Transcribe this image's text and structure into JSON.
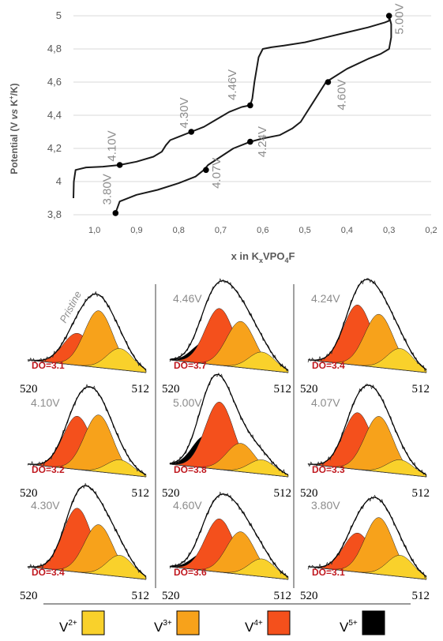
{
  "chart_data": [
    {
      "type": "line",
      "xlabel_main": "x in K",
      "xlabel_sub1": "x",
      "xlabel_mid": "VPO",
      "xlabel_sub2": "4",
      "xlabel_end": "F",
      "ylabel_pre": "Potential (V ",
      "ylabel_vs": "vs",
      "ylabel_post": " K",
      "ylabel_sup": "+",
      "ylabel_end": "/K)",
      "xlim": [
        1.05,
        0.2
      ],
      "ylim": [
        3.8,
        5.0
      ],
      "xticks": [
        1.0,
        0.9,
        0.8,
        0.7,
        0.6,
        0.5,
        0.4,
        0.3,
        0.2
      ],
      "xtick_labels": [
        "1,0",
        "0,9",
        "0,8",
        "0,7",
        "0,6",
        "0,5",
        "0,4",
        "0,3",
        "0,2"
      ],
      "yticks": [
        3.8,
        4.0,
        4.2,
        4.4,
        4.6,
        4.8,
        5.0
      ],
      "ytick_labels": [
        "3,8",
        "4",
        "4,2",
        "4,4",
        "4,6",
        "4,8",
        "5"
      ],
      "grid": "horizontal",
      "series": [
        {
          "x": [
            1.05,
            1.049,
            1.045,
            1.02,
            0.98,
            0.94,
            0.9,
            0.86,
            0.84,
            0.83,
            0.82,
            0.8,
            0.77,
            0.74,
            0.72,
            0.7,
            0.68,
            0.65,
            0.63,
            0.625,
            0.62,
            0.61,
            0.6,
            0.58,
            0.55,
            0.5,
            0.45,
            0.4,
            0.35,
            0.31,
            0.3,
            0.3,
            0.3
          ],
          "y": [
            3.9,
            4.0,
            4.07,
            4.085,
            4.09,
            4.1,
            4.12,
            4.15,
            4.18,
            4.22,
            4.25,
            4.27,
            4.3,
            4.33,
            4.36,
            4.39,
            4.42,
            4.45,
            4.46,
            4.5,
            4.6,
            4.75,
            4.8,
            4.81,
            4.82,
            4.84,
            4.87,
            4.9,
            4.93,
            4.96,
            4.97,
            4.98,
            5.0
          ]
        },
        {
          "x": [
            0.95,
            0.94,
            0.9,
            0.85,
            0.8,
            0.76,
            0.74,
            0.73,
            0.7,
            0.67,
            0.64,
            0.63,
            0.6,
            0.56,
            0.53,
            0.51,
            0.5,
            0.48,
            0.45,
            0.4,
            0.35,
            0.32,
            0.3,
            0.295,
            0.295,
            0.3
          ],
          "y": [
            3.81,
            3.88,
            3.92,
            3.95,
            3.99,
            4.03,
            4.07,
            4.1,
            4.15,
            4.2,
            4.23,
            4.24,
            4.26,
            4.28,
            4.32,
            4.36,
            4.4,
            4.48,
            4.6,
            4.68,
            4.74,
            4.77,
            4.8,
            4.87,
            4.95,
            5.0
          ]
        }
      ],
      "points": [
        {
          "x": 0.3,
          "y": 5.0,
          "label": "5.00V"
        },
        {
          "x": 0.63,
          "y": 4.46,
          "label": "4.46V"
        },
        {
          "x": 0.77,
          "y": 4.3,
          "label": "4.30V"
        },
        {
          "x": 0.94,
          "y": 4.1,
          "label": "4.10V"
        },
        {
          "x": 0.95,
          "y": 3.81,
          "label": "3.80V"
        },
        {
          "x": 0.735,
          "y": 4.07,
          "label": "4.07V"
        },
        {
          "x": 0.63,
          "y": 4.24,
          "label": "4.24V"
        },
        {
          "x": 0.445,
          "y": 4.6,
          "label": "4.60V"
        }
      ]
    },
    {
      "type": "area",
      "description": "V 2p3/2 XPS deconvolution panels",
      "xlim": [
        520,
        512
      ],
      "tick_left": "520",
      "tick_right": "512",
      "panels": [
        {
          "label": "Pristine",
          "do": "DO=3.1",
          "components": [
            0,
            0.45,
            0.8,
            0.3
          ],
          "row": 0,
          "col": 0
        },
        {
          "label": "4.46V",
          "do": "DO=3.7",
          "components": [
            0.3,
            0.8,
            0.65,
            0.25
          ],
          "row": 0,
          "col": 1
        },
        {
          "label": "4.24V",
          "do": "DO=3.4",
          "components": [
            0,
            0.85,
            0.75,
            0.3
          ],
          "row": 0,
          "col": 2
        },
        {
          "label": "4.10V",
          "do": "DO=3.2",
          "components": [
            0,
            0.75,
            0.8,
            0.2
          ],
          "row": 1,
          "col": 0
        },
        {
          "label": "5.00V",
          "do": "DO=3.8",
          "components": [
            0.45,
            0.95,
            0.4,
            0.2
          ],
          "row": 1,
          "col": 1
        },
        {
          "label": "4.07V",
          "do": "DO=3.3",
          "components": [
            0,
            0.8,
            0.78,
            0.2
          ],
          "row": 1,
          "col": 2
        },
        {
          "label": "4.30V",
          "do": "DO=3.4",
          "components": [
            0,
            0.9,
            0.7,
            0.3
          ],
          "row": 2,
          "col": 0
        },
        {
          "label": "4.60V",
          "do": "DO=3.6",
          "components": [
            0.25,
            0.75,
            0.6,
            0.25
          ],
          "row": 2,
          "col": 1
        },
        {
          "label": "3.80V",
          "do": "DO=3.1",
          "components": [
            0,
            0.55,
            0.8,
            0.3
          ],
          "row": 2,
          "col": 2
        }
      ]
    }
  ],
  "legend": [
    {
      "base": "V",
      "sup": "2+",
      "color": "#f9d12b"
    },
    {
      "base": "V",
      "sup": "3+",
      "color": "#f7a21b"
    },
    {
      "base": "V",
      "sup": "4+",
      "color": "#f4501c"
    },
    {
      "base": "V",
      "sup": "5+",
      "color": "#000000"
    }
  ],
  "colors": {
    "curve": "#1a1a1a",
    "label_gray": "#8c8c8c",
    "do_red": "#c0181f",
    "grid": "#d9d9d9"
  }
}
